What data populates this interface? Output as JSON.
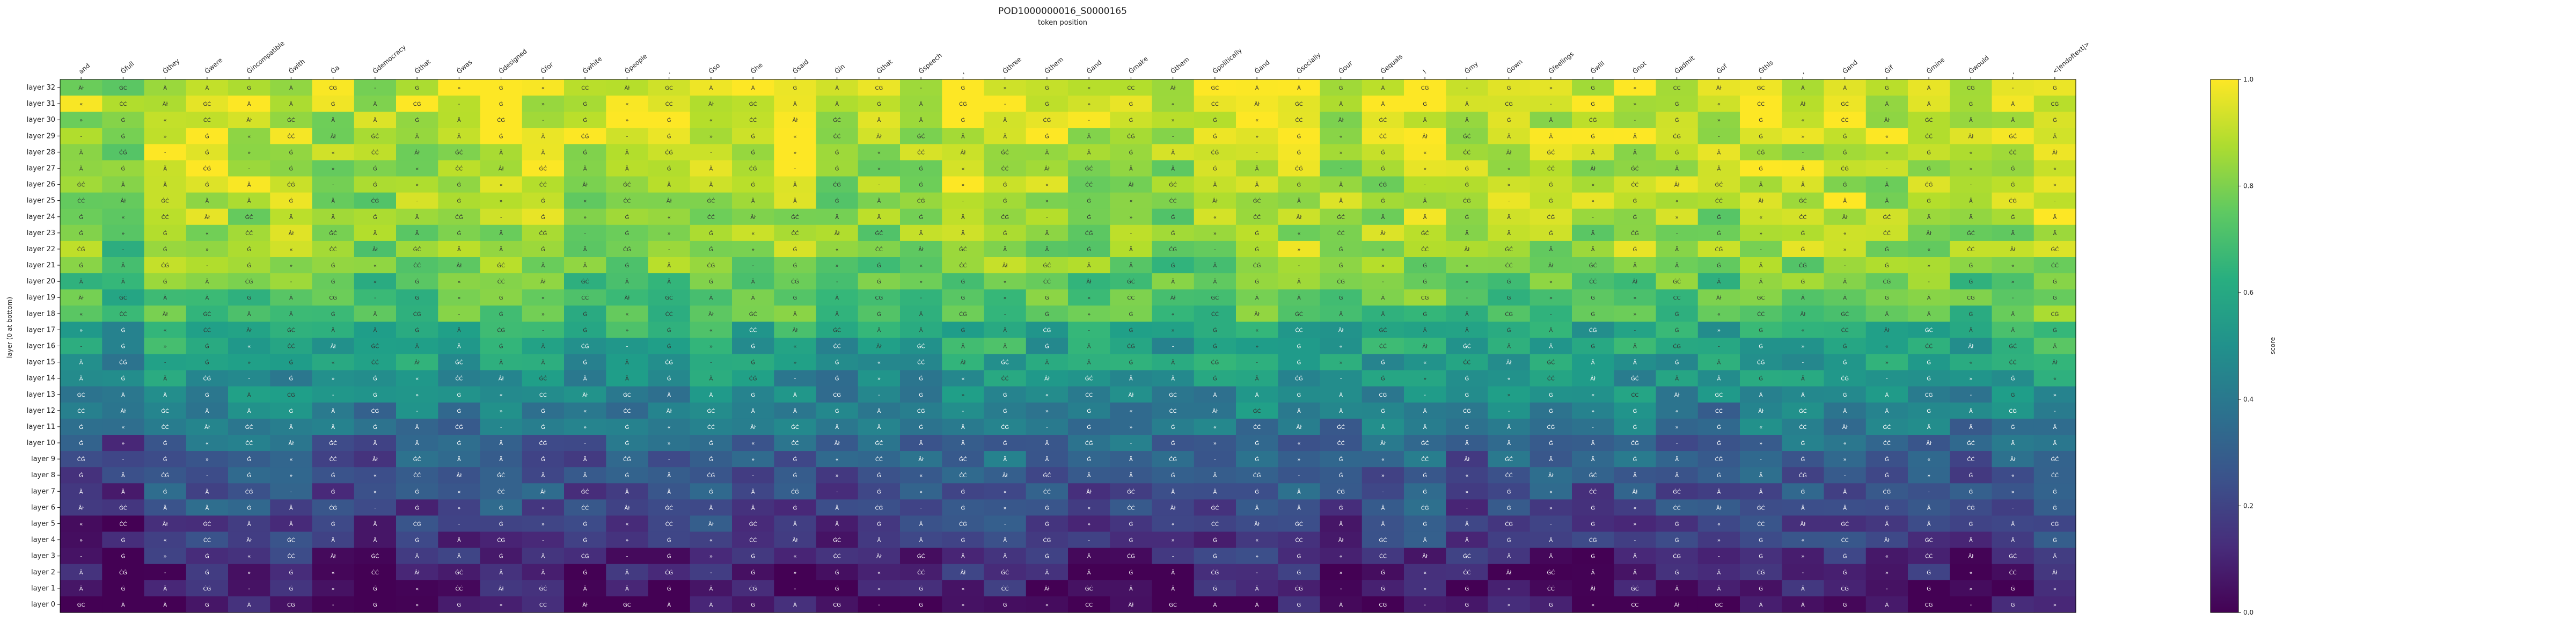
{
  "chart_data": {
    "type": "heatmap",
    "title": "POD1000000016_S0000165",
    "subtitle": "token position",
    "xlabel": "",
    "ylabel": "layer (0 at bottom)",
    "colorbar_label": "score",
    "colorbar_ticks": [
      "0.0",
      "0.2",
      "0.4",
      "0.6",
      "0.8",
      "1.0"
    ],
    "colormap": "viridis",
    "vmin": 0.0,
    "vmax": 1.0,
    "x_tokens": [
      "and",
      "Ġfull",
      "Ġthey",
      "Ġwere",
      "Ġincompatible",
      "Ġwith",
      "Ġa",
      "Ġdemocracy",
      "Ġthat",
      "Ġwas",
      "Ġdesigned",
      "Ġfor",
      "Ġwhite",
      "Ġpeople",
      ".",
      "Ġso",
      "Ġhe",
      "Ġsaid",
      "Ġin",
      "Ġthat",
      "Ġspeech",
      ",",
      "Ġthree",
      "Ġthem",
      "Ġand",
      "Ġmake",
      "Ġthem",
      "Ġpolitically",
      "Ġand",
      "Ġsocially",
      "Ġour",
      "Ġequals",
      "!",
      "Ġmy",
      "Ġown",
      "Ġfeelings",
      "Ġwill",
      "Ġnot",
      "Ġadmit",
      "Ġof",
      "Ġthis",
      ",",
      "Ġand",
      "Ġif",
      "Ġmine",
      "Ġwould",
      ",",
      "<|endoftext|>"
    ],
    "y_layers": [
      "layer 32",
      "layer 31",
      "layer 30",
      "layer 29",
      "layer 28",
      "layer 27",
      "layer 26",
      "layer 25",
      "layer 24",
      "layer 23",
      "layer 22",
      "layer 21",
      "layer 20",
      "layer 19",
      "layer 18",
      "layer 17",
      "layer 16",
      "layer 15",
      "layer 14",
      "layer 13",
      "layer 12",
      "layer 11",
      "layer 10",
      "layer 9",
      "layer 8",
      "layer 7",
      "layer 6",
      "layer 5",
      "layer 4",
      "layer 3",
      "layer 2",
      "layer 1",
      "layer 0"
    ],
    "cell_label_sample": [
      "Âł",
      "»",
      "Ã",
      "ĠĊ",
      "Ġ",
      "ĊĠ",
      "Ã",
      "«",
      "-",
      "Ã",
      "ĊĊ",
      "Ġ",
      "Ġ"
    ],
    "row_profile": [
      0.93,
      0.95,
      0.92,
      0.92,
      0.9,
      0.89,
      0.88,
      0.88,
      0.86,
      0.85,
      0.85,
      0.8,
      0.76,
      0.73,
      0.72,
      0.6,
      0.58,
      0.56,
      0.5,
      0.47,
      0.43,
      0.4,
      0.33,
      0.3,
      0.27,
      0.25,
      0.22,
      0.19,
      0.16,
      0.12,
      0.09,
      0.06,
      0.03
    ],
    "col_offset": [
      -0.05,
      -0.12,
      0.02,
      0.03,
      0.01,
      0.0,
      -0.04,
      -0.06,
      -0.02,
      -0.01,
      0.02,
      0.0,
      -0.03,
      0.01,
      0.0,
      0.02,
      -0.02,
      0.0,
      -0.06,
      -0.04,
      -0.02,
      0.03,
      0.04,
      -0.01,
      -0.02,
      0.0,
      -0.05,
      0.0,
      0.03,
      0.02,
      -0.03,
      0.0,
      0.04,
      -0.03,
      0.0,
      0.0,
      -0.02,
      0.01,
      -0.01,
      -0.03,
      0.02,
      0.01,
      0.02,
      -0.02,
      0.0,
      -0.03,
      0.0,
      0.05
    ]
  }
}
